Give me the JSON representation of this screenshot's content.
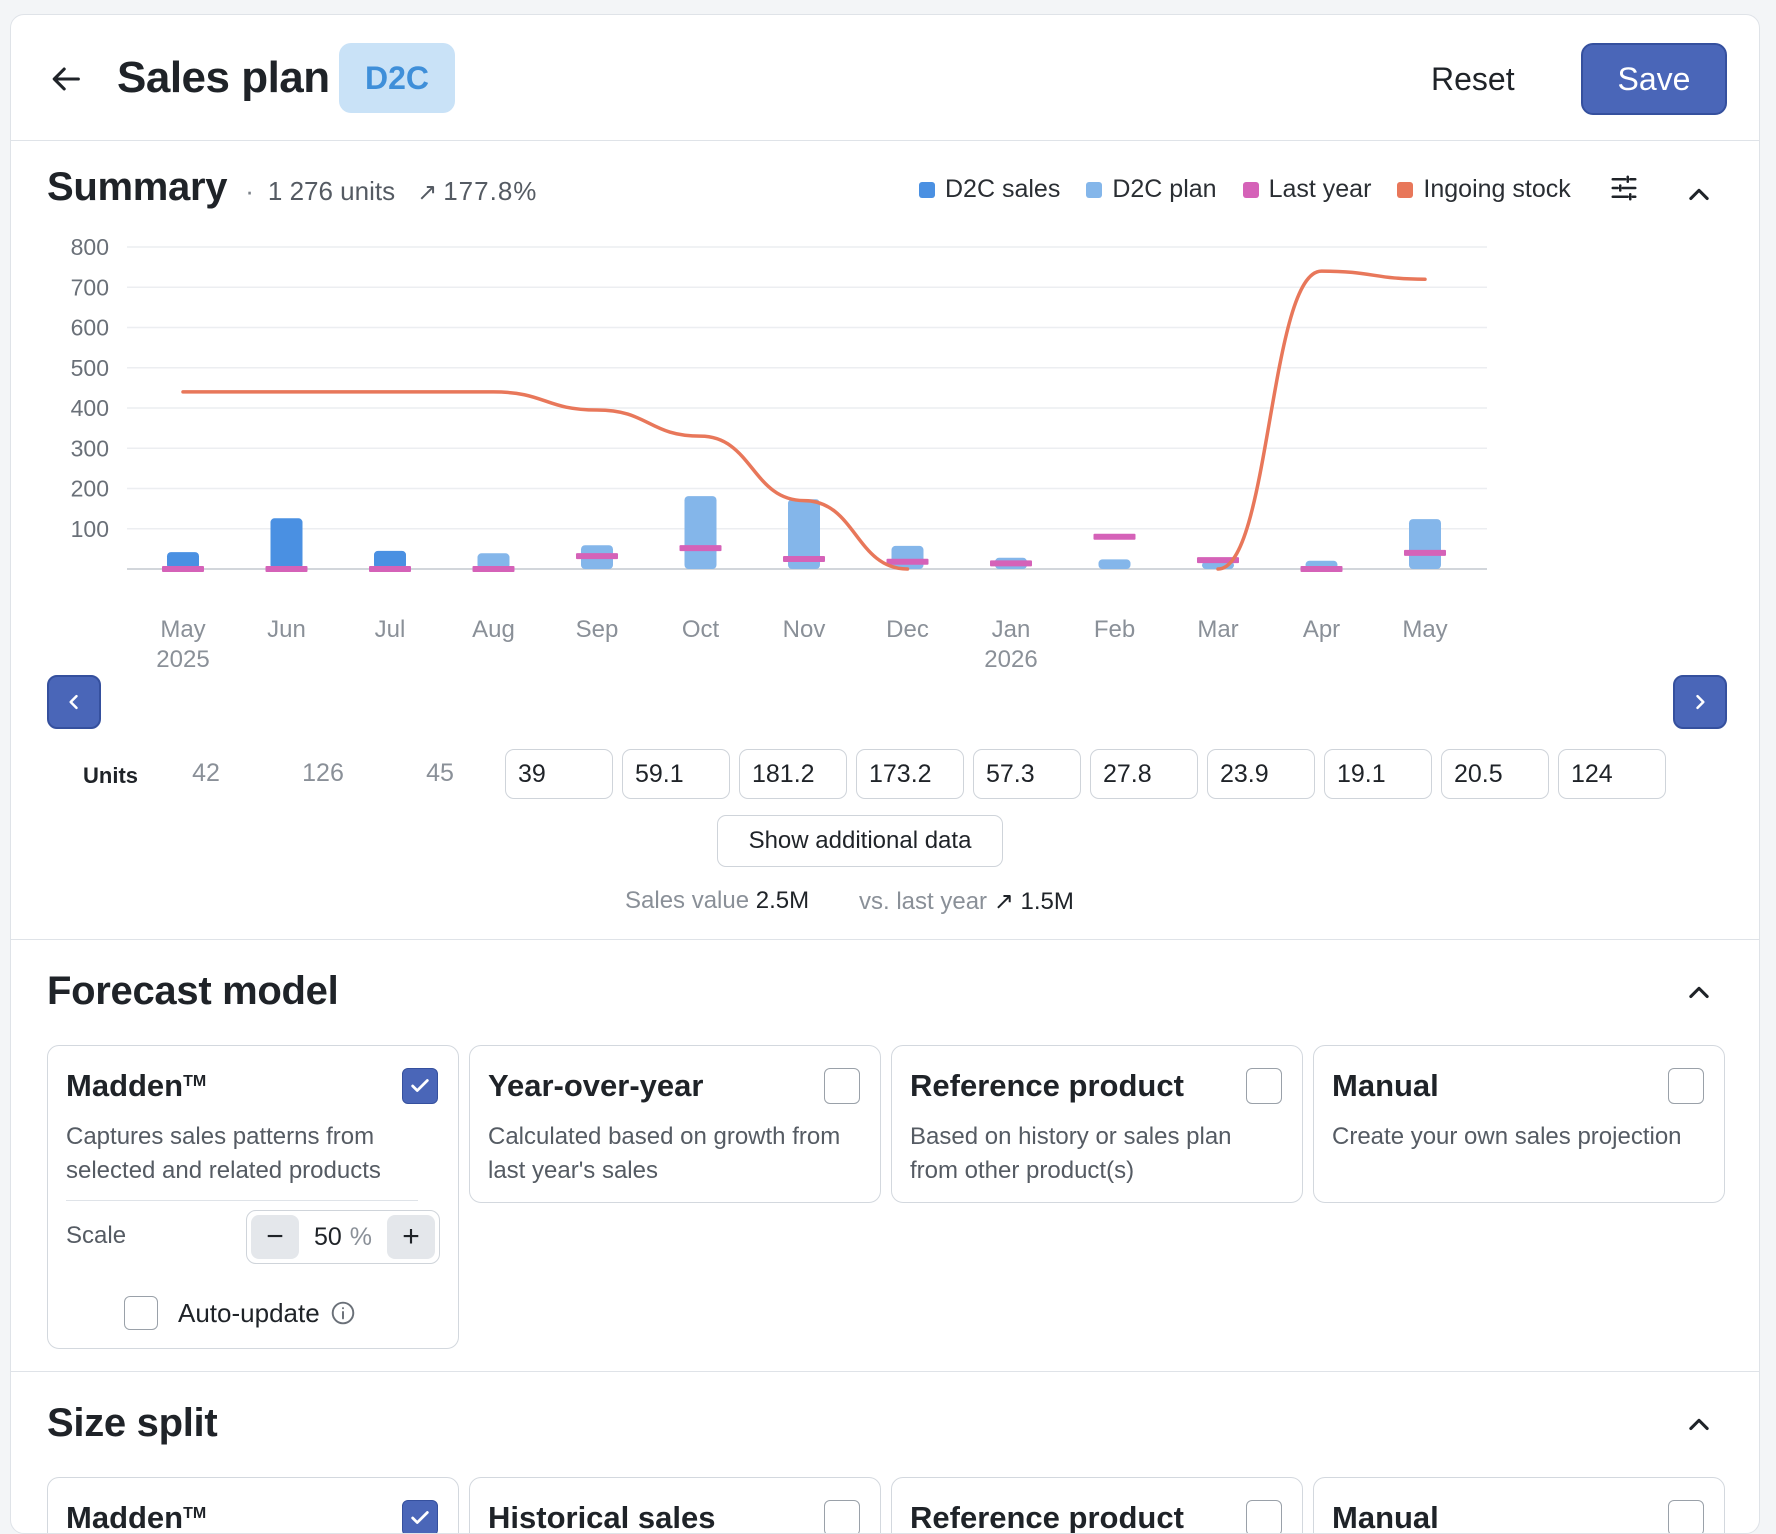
{
  "header": {
    "title": "Sales plan",
    "badge": "D2C",
    "reset_label": "Reset",
    "save_label": "Save"
  },
  "summary": {
    "title": "Summary",
    "separator": "·",
    "units": "1 276 units",
    "trend_icon": "↗",
    "change": "177.8%",
    "legend": [
      {
        "label": "D2C sales",
        "color": "#4a90e2"
      },
      {
        "label": "D2C plan",
        "color": "#84b6ea"
      },
      {
        "label": "Last year",
        "color": "#d562b8"
      },
      {
        "label": "Ingoing stock",
        "color": "#e8775a"
      }
    ],
    "units_label": "Units",
    "units_static": [
      "42",
      "126",
      "45"
    ],
    "units_inputs": [
      "39",
      "59.1",
      "181.2",
      "173.2",
      "57.3",
      "27.8",
      "23.9",
      "19.1",
      "20.5",
      "124"
    ],
    "show_data_label": "Show additional data",
    "sales_value_label": "Sales value",
    "sales_value": "2.5M",
    "vs_label": "vs. last year",
    "vs_icon": "↗",
    "vs_value": "1.5M"
  },
  "chart_data": {
    "type": "bar",
    "categories": [
      "May\n2025",
      "Jun",
      "Jul",
      "Aug",
      "Sep",
      "Oct",
      "Nov",
      "Dec",
      "Jan\n2026",
      "Feb",
      "Mar",
      "Apr",
      "May"
    ],
    "category_lines": [
      [
        "May",
        "2025"
      ],
      [
        "Jun"
      ],
      [
        "Jul"
      ],
      [
        "Aug"
      ],
      [
        "Sep"
      ],
      [
        "Oct"
      ],
      [
        "Nov"
      ],
      [
        "Dec"
      ],
      [
        "Jan",
        "2026"
      ],
      [
        "Feb"
      ],
      [
        "Mar"
      ],
      [
        "Apr"
      ],
      [
        "May"
      ]
    ],
    "series": [
      {
        "name": "D2C sales",
        "kind": "bar",
        "color": "#4a90e2",
        "values": [
          42,
          126,
          45,
          null,
          null,
          null,
          null,
          null,
          null,
          null,
          null,
          null,
          null
        ]
      },
      {
        "name": "D2C plan",
        "kind": "bar",
        "color": "#84b6ea",
        "values": [
          null,
          null,
          null,
          39,
          59.1,
          181.2,
          173.2,
          57.3,
          27.8,
          23.9,
          19.1,
          20.5,
          124
        ]
      },
      {
        "name": "Last year",
        "kind": "marker",
        "color": "#d562b8",
        "values": [
          0,
          0,
          0,
          0,
          32,
          52,
          25,
          18,
          14,
          80,
          22,
          0,
          40
        ]
      },
      {
        "name": "Ingoing stock",
        "kind": "line",
        "color": "#e8775a",
        "values": [
          440,
          440,
          440,
          440,
          395,
          330,
          170,
          0,
          null,
          null,
          0,
          740,
          720
        ]
      }
    ],
    "yticks": [
      100,
      200,
      300,
      400,
      500,
      600,
      700,
      800
    ],
    "ylim": [
      0,
      800
    ],
    "grid": true,
    "legend_position": "top-right"
  },
  "forecast": {
    "title": "Forecast model",
    "cards": [
      {
        "title": "Madden",
        "tm": "TM",
        "desc": "Captures sales patterns from selected and related products",
        "checked": true
      },
      {
        "title": "Year-over-year",
        "desc": "Calculated based on growth from last year's sales",
        "checked": false
      },
      {
        "title": "Reference product",
        "desc": "Based on history or sales plan from other product(s)",
        "checked": false
      },
      {
        "title": "Manual",
        "desc": "Create your own sales projection",
        "checked": false
      }
    ],
    "scale_label": "Scale",
    "scale_value": "50",
    "scale_unit": "%",
    "minus": "−",
    "plus": "+",
    "auto_update_label": "Auto-update"
  },
  "size_split": {
    "title": "Size split",
    "cards": [
      {
        "title": "Madden",
        "tm": "TM",
        "checked": true
      },
      {
        "title": "Historical sales",
        "checked": false
      },
      {
        "title": "Reference product",
        "checked": false
      },
      {
        "title": "Manual",
        "checked": false
      }
    ]
  }
}
